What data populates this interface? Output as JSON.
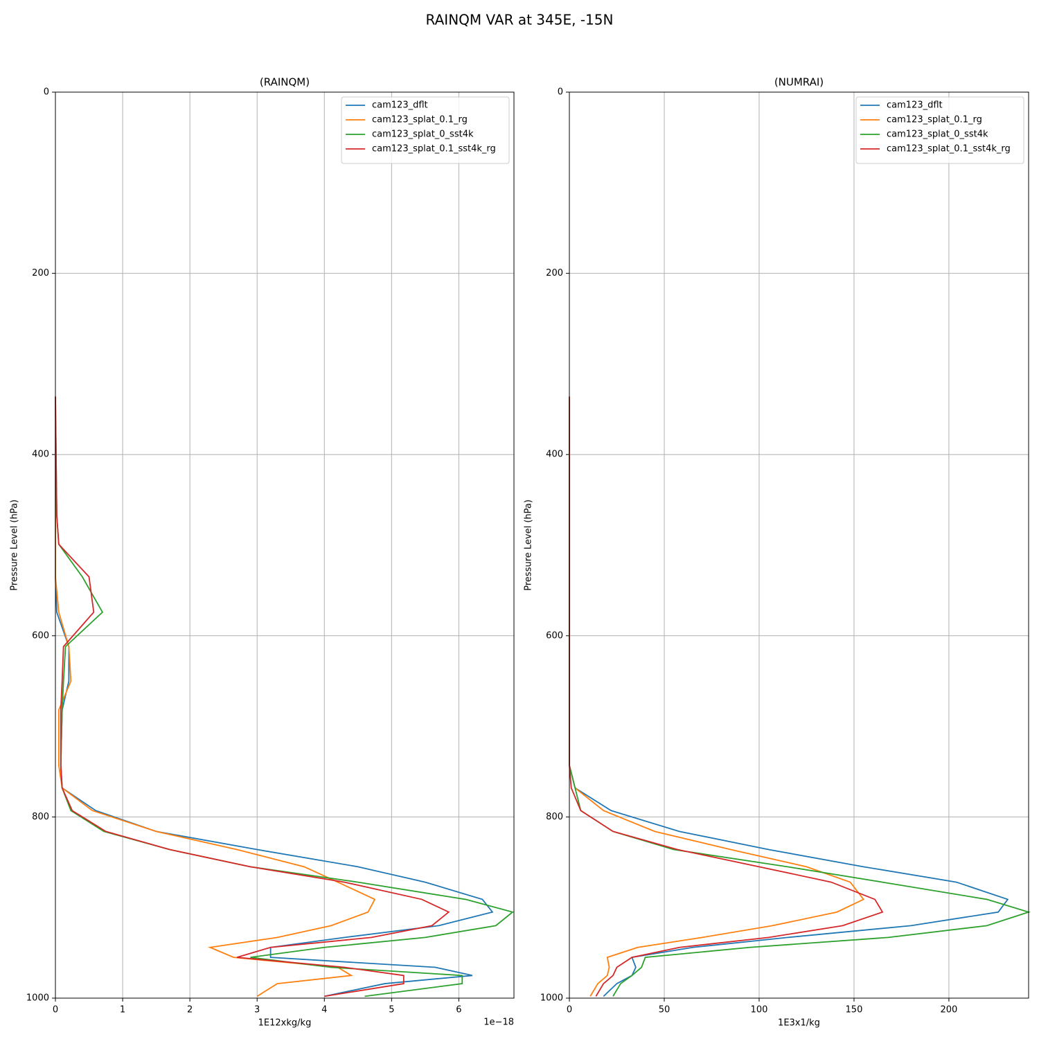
{
  "title": "RAINQM VAR at 345E, -15N",
  "chart_data": [
    {
      "type": "line",
      "title": "(RAINQM)",
      "xlabel": "1E12xkg/kg",
      "ylabel": "Pressure Level (hPa)",
      "x_offset_label": "1e−18",
      "y": [
        336,
        467,
        499,
        535,
        574,
        612,
        650,
        682,
        743,
        768,
        793,
        816,
        836,
        855,
        872,
        891,
        905,
        920,
        933,
        944,
        955,
        966,
        975,
        984,
        998
      ],
      "series": [
        {
          "name": "cam123_dflt",
          "color": "#1f77b4",
          "values": [
            0,
            0,
            0,
            0,
            0.02,
            0.2,
            0.2,
            0.1,
            0.08,
            0.1,
            0.6,
            1.5,
            3.0,
            4.5,
            5.5,
            6.35,
            6.5,
            5.7,
            4.3,
            3.2,
            3.2,
            5.65,
            6.2,
            4.9,
            4.0
          ]
        },
        {
          "name": "cam123_splat_0.1_rg",
          "color": "#ff7f0e",
          "values": [
            0,
            0,
            0,
            0,
            0.05,
            0.2,
            0.23,
            0.05,
            0.05,
            0.1,
            0.55,
            1.5,
            2.7,
            3.7,
            4.2,
            4.75,
            4.65,
            4.1,
            3.3,
            2.3,
            2.65,
            4.2,
            4.4,
            3.3,
            3.0
          ]
        },
        {
          "name": "cam123_splat_0_sst4k",
          "color": "#2ca02c",
          "values": [
            0,
            0.02,
            0.05,
            0.4,
            0.7,
            0.15,
            0.12,
            0.1,
            0.08,
            0.1,
            0.23,
            0.72,
            1.7,
            2.9,
            4.5,
            6.1,
            6.8,
            6.55,
            5.5,
            4.0,
            2.9,
            4.1,
            6.05,
            6.05,
            4.6
          ]
        },
        {
          "name": "cam123_splat_0.1_sst4k_rg",
          "color": "#d62728",
          "values": [
            0,
            0.02,
            0.05,
            0.5,
            0.57,
            0.12,
            0.1,
            0.08,
            0.08,
            0.1,
            0.25,
            0.75,
            1.7,
            2.9,
            4.3,
            5.45,
            5.85,
            5.6,
            4.7,
            3.2,
            2.7,
            4.3,
            5.18,
            5.18,
            4.0
          ]
        }
      ],
      "xlim": [
        0,
        6.82
      ],
      "xticks": [
        0,
        1,
        2,
        3,
        4,
        5,
        6
      ],
      "ylim": [
        1000,
        0
      ],
      "yticks": [
        0,
        200,
        400,
        600,
        800,
        1000
      ],
      "grid": true,
      "legend": "upper right"
    },
    {
      "type": "line",
      "title": "(NUMRAI)",
      "xlabel": "1E3x1/kg",
      "ylabel": "Pressure Level (hPa)",
      "y": [
        336,
        467,
        499,
        535,
        574,
        612,
        650,
        682,
        743,
        768,
        793,
        816,
        836,
        855,
        872,
        891,
        905,
        920,
        933,
        944,
        955,
        966,
        975,
        984,
        998
      ],
      "series": [
        {
          "name": "cam123_dflt",
          "color": "#1f77b4",
          "values": [
            0,
            0,
            0,
            0,
            0,
            0,
            0,
            0,
            0,
            3,
            22,
            58,
            105,
            155,
            204,
            231,
            226,
            180,
            115,
            65,
            33,
            35,
            33,
            25,
            18
          ]
        },
        {
          "name": "cam123_splat_0.1_rg",
          "color": "#ff7f0e",
          "values": [
            0,
            0,
            0,
            0,
            0,
            0,
            0,
            0,
            0,
            3,
            18,
            45,
            85,
            125,
            148,
            155,
            141,
            107,
            70,
            36,
            20,
            21,
            20,
            15,
            11
          ]
        },
        {
          "name": "cam123_splat_0_sst4k",
          "color": "#2ca02c",
          "values": [
            0,
            0,
            0,
            0,
            0,
            0,
            0,
            0,
            0,
            3,
            6,
            23,
            55,
            115,
            165,
            220,
            242,
            220,
            168,
            95,
            40,
            38,
            33,
            27,
            23
          ]
        },
        {
          "name": "cam123_splat_0.1_sst4k_rg",
          "color": "#d62728",
          "values": [
            0,
            0,
            0,
            0,
            0,
            0,
            0,
            0,
            0,
            1,
            6,
            23,
            57,
            100,
            138,
            161,
            165,
            144,
            105,
            58,
            33,
            25,
            23,
            18,
            14
          ]
        }
      ],
      "xlim": [
        0,
        242
      ],
      "xticks": [
        0,
        50,
        100,
        150,
        200
      ],
      "ylim": [
        1000,
        0
      ],
      "yticks": [
        0,
        200,
        400,
        600,
        800,
        1000
      ],
      "grid": true,
      "legend": "upper right"
    }
  ]
}
